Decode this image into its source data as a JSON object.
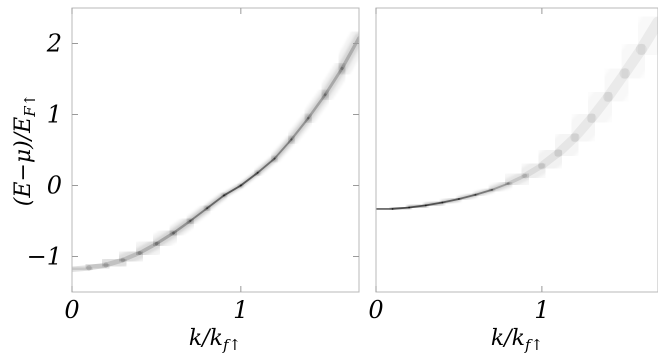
{
  "chart_data": [
    {
      "type": "heatmap",
      "panel": "left",
      "xlabel": "k/k_f↑",
      "ylabel": "(E−μ)/E_F↑",
      "xlim": [
        0,
        1.7
      ],
      "ylim": [
        -1.5,
        2.5
      ],
      "xticks": [
        {
          "value": 0,
          "label": "0"
        },
        {
          "value": 1,
          "label": "1"
        }
      ],
      "yticks": [
        {
          "value": -1,
          "label": "−1"
        },
        {
          "value": 0,
          "label": "0"
        },
        {
          "value": 1,
          "label": "1"
        },
        {
          "value": 2,
          "label": "2"
        }
      ],
      "colormap": [
        "#ffffff",
        "#000000"
      ],
      "series": [
        {
          "x": [
            0.0,
            0.1,
            0.2,
            0.3,
            0.4,
            0.5,
            0.6,
            0.7,
            0.8,
            0.9,
            1.0,
            1.1,
            1.2,
            1.3,
            1.4,
            1.5,
            1.6,
            1.7
          ],
          "y": [
            -1.18,
            -1.16,
            -1.12,
            -1.05,
            -0.95,
            -0.82,
            -0.67,
            -0.5,
            -0.32,
            -0.14,
            0.0,
            0.18,
            0.38,
            0.65,
            0.95,
            1.28,
            1.65,
            2.08
          ],
          "width": [
            0.14,
            0.14,
            0.13,
            0.12,
            0.1,
            0.09,
            0.07,
            0.055,
            0.04,
            0.03,
            0.02,
            0.03,
            0.04,
            0.05,
            0.06,
            0.07,
            0.08,
            0.09
          ],
          "weight": [
            0.35,
            0.35,
            0.38,
            0.4,
            0.45,
            0.52,
            0.6,
            0.7,
            0.82,
            0.92,
            1.0,
            0.9,
            0.78,
            0.68,
            0.6,
            0.55,
            0.52,
            0.5
          ]
        }
      ]
    },
    {
      "type": "heatmap",
      "panel": "right",
      "xlabel": "k/k_f↑",
      "ylabel": "",
      "xlim": [
        0,
        1.7
      ],
      "ylim": [
        -1.5,
        2.5
      ],
      "xticks": [
        {
          "value": 0,
          "label": "0"
        },
        {
          "value": 1,
          "label": "1"
        }
      ],
      "yticks": [],
      "colormap": [
        "#ffffff",
        "#000000"
      ],
      "series": [
        {
          "x": [
            0.0,
            0.1,
            0.2,
            0.3,
            0.4,
            0.5,
            0.6,
            0.7,
            0.8,
            0.9,
            1.0,
            1.1,
            1.2,
            1.3,
            1.4,
            1.5,
            1.6,
            1.7
          ],
          "y": [
            -0.33,
            -0.33,
            -0.31,
            -0.28,
            -0.24,
            -0.19,
            -0.13,
            -0.06,
            0.03,
            0.14,
            0.28,
            0.46,
            0.68,
            0.95,
            1.25,
            1.58,
            1.92,
            2.3
          ],
          "width": [
            0.03,
            0.03,
            0.03,
            0.03,
            0.025,
            0.025,
            0.025,
            0.03,
            0.06,
            0.12,
            0.18,
            0.22,
            0.24,
            0.25,
            0.26,
            0.27,
            0.28,
            0.3
          ],
          "weight": [
            0.95,
            0.97,
            1.0,
            1.0,
            0.95,
            0.9,
            0.85,
            0.75,
            0.45,
            0.25,
            0.18,
            0.13,
            0.11,
            0.1,
            0.09,
            0.08,
            0.08,
            0.07
          ]
        }
      ]
    }
  ]
}
